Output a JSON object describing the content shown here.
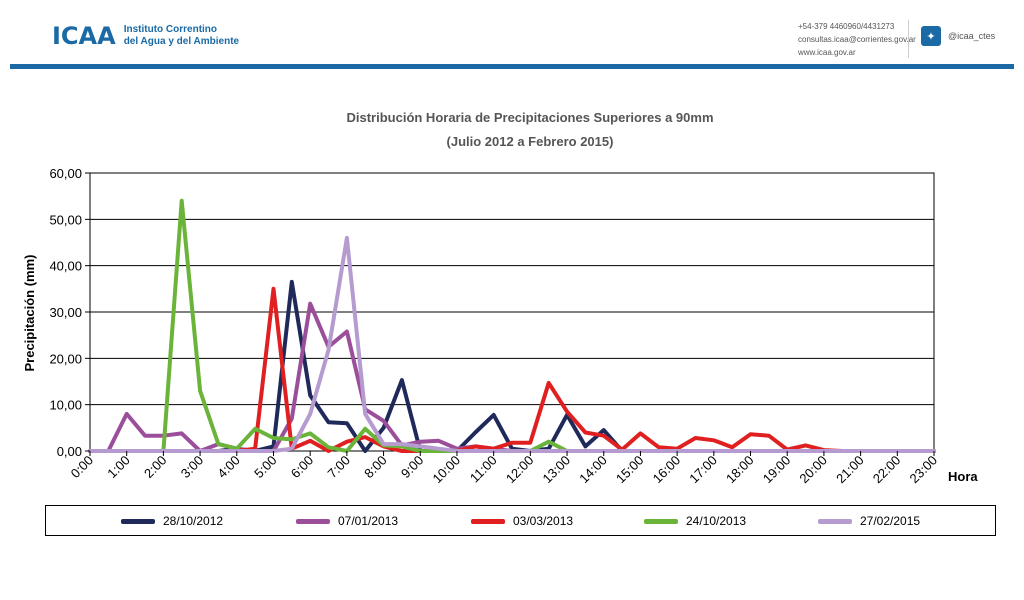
{
  "header": {
    "logo_mark": "ICAA",
    "org_line1": "Instituto Correntino",
    "org_line2": "del Agua y del Ambiente",
    "phone": "+54-379 4460960/4431273",
    "email": "consultas.icaa@corrientes.gov.ar",
    "web": "www.icaa.gov.ar",
    "twitter_icon": "twitter-icon",
    "twitter_handle": "@icaa_ctes",
    "brand_color": "#1b6aa5"
  },
  "chart_data": {
    "type": "line",
    "title": "Distribución Horaria de Precipitaciones Superiores a 90mm",
    "subtitle": "(Julio 2012 a Febrero 2015)",
    "xlabel": "Hora",
    "ylabel": "Precipitación (mm)",
    "ylim": [
      0,
      60
    ],
    "yticks": [
      "0,00",
      "10,00",
      "20,00",
      "30,00",
      "40,00",
      "50,00",
      "60,00"
    ],
    "categories": [
      "0:00",
      "1:00",
      "2:00",
      "3:00",
      "4:00",
      "5:00",
      "6:00",
      "7:00",
      "8:00",
      "9:00",
      "10:00",
      "11:00",
      "12:00",
      "13:00",
      "14:00",
      "15:00",
      "16:00",
      "17:00",
      "18:00",
      "19:00",
      "20:00",
      "21:00",
      "22:00",
      "23:00"
    ],
    "grid": "horizontal",
    "legend_position": "bottom",
    "series": [
      {
        "name": "28/10/2012",
        "color": "#1f2a5a",
        "x": [
          0,
          0.5,
          1,
          1.5,
          2,
          2.5,
          3,
          3.5,
          4,
          4.5,
          5,
          5.5,
          6,
          6.5,
          7,
          7.5,
          8,
          8.5,
          9,
          9.5,
          10,
          10.5,
          11,
          11.5,
          12,
          12.5,
          13,
          13.5,
          14,
          14.5,
          15,
          16,
          17,
          18,
          19,
          20,
          21,
          22,
          23
        ],
        "values": [
          0,
          0,
          0,
          0,
          0,
          0,
          0,
          0,
          0.5,
          0,
          1,
          36.5,
          12,
          6.2,
          6,
          0,
          5,
          15.3,
          0,
          0,
          0,
          4,
          7.8,
          0.5,
          0,
          0.5,
          7.8,
          1,
          4.5,
          0,
          0,
          0,
          0,
          0,
          0,
          0,
          0,
          0,
          0
        ]
      },
      {
        "name": "07/01/2013",
        "color": "#9b4f9b",
        "x": [
          0,
          0.5,
          1,
          1.5,
          2,
          2.5,
          3,
          3.5,
          4,
          4.5,
          5,
          5.5,
          6,
          6.5,
          7,
          7.5,
          8,
          8.5,
          9,
          9.5,
          10,
          10.5,
          11,
          11.5,
          12,
          12.5,
          13,
          14,
          15,
          16,
          17,
          18,
          19,
          20,
          21,
          22,
          23
        ],
        "values": [
          0,
          0,
          8,
          3.3,
          3.3,
          3.8,
          0,
          1.5,
          0.5,
          0,
          0,
          7,
          31.8,
          22.5,
          25.8,
          9,
          6.5,
          1.2,
          2,
          2.2,
          0.5,
          1,
          0.5,
          0,
          0,
          0,
          0,
          0,
          0,
          0,
          0,
          0,
          0,
          0,
          0,
          0,
          0
        ]
      },
      {
        "name": "03/03/2013",
        "color": "#e02020",
        "x": [
          0,
          1,
          2,
          3,
          4,
          4.5,
          5,
          5.5,
          6,
          6.5,
          7,
          7.5,
          8,
          8.5,
          9,
          9.5,
          10,
          10.5,
          11,
          11.5,
          12,
          12.5,
          13,
          13.5,
          14,
          14.5,
          15,
          15.5,
          16,
          16.5,
          17,
          17.5,
          18,
          18.5,
          19,
          19.5,
          20,
          20.5,
          21,
          22,
          23
        ],
        "values": [
          0,
          0,
          0,
          0,
          0,
          0.5,
          35,
          0.5,
          2.2,
          0,
          2,
          3,
          1,
          0,
          0,
          0,
          0,
          1,
          0.5,
          1.8,
          1.8,
          14.7,
          8.5,
          4,
          3.3,
          0.3,
          3.8,
          0.8,
          0.5,
          2.8,
          2.3,
          0.8,
          3.6,
          3.3,
          0.3,
          1.2,
          0.2,
          0,
          0,
          0,
          0
        ]
      },
      {
        "name": "24/10/2013",
        "color": "#6ab43a",
        "x": [
          0,
          1,
          1.5,
          2,
          2.5,
          3,
          3.5,
          4,
          4.5,
          5,
          5.5,
          6,
          6.5,
          7,
          7.5,
          8,
          8.5,
          9,
          9.5,
          10,
          11,
          12,
          12.5,
          13,
          14,
          15,
          16,
          17,
          18,
          19,
          20,
          21,
          22,
          23
        ],
        "values": [
          0,
          0,
          0,
          0,
          54,
          13,
          1.5,
          0.5,
          4.8,
          2.8,
          2.5,
          3.8,
          0.8,
          0,
          4.8,
          1.2,
          1,
          0,
          0,
          0,
          0,
          0,
          2,
          0,
          0,
          0,
          0,
          0,
          0,
          0,
          0,
          0,
          0,
          0
        ]
      },
      {
        "name": "27/02/2015",
        "color": "#b59bcf",
        "x": [
          0,
          1,
          2,
          3,
          4,
          5,
          5.5,
          6,
          6.5,
          7,
          7.5,
          8,
          8.5,
          9,
          9.5,
          10,
          11,
          12,
          13,
          14,
          15,
          16,
          17,
          18,
          19,
          20,
          21,
          22,
          23
        ],
        "values": [
          0,
          0,
          0,
          0,
          0,
          0,
          0.5,
          8,
          21.8,
          46,
          8,
          1.5,
          1.5,
          1,
          0.5,
          0,
          0,
          0,
          0,
          0,
          0,
          0,
          0,
          0,
          0,
          0,
          0,
          0,
          0
        ]
      }
    ]
  }
}
